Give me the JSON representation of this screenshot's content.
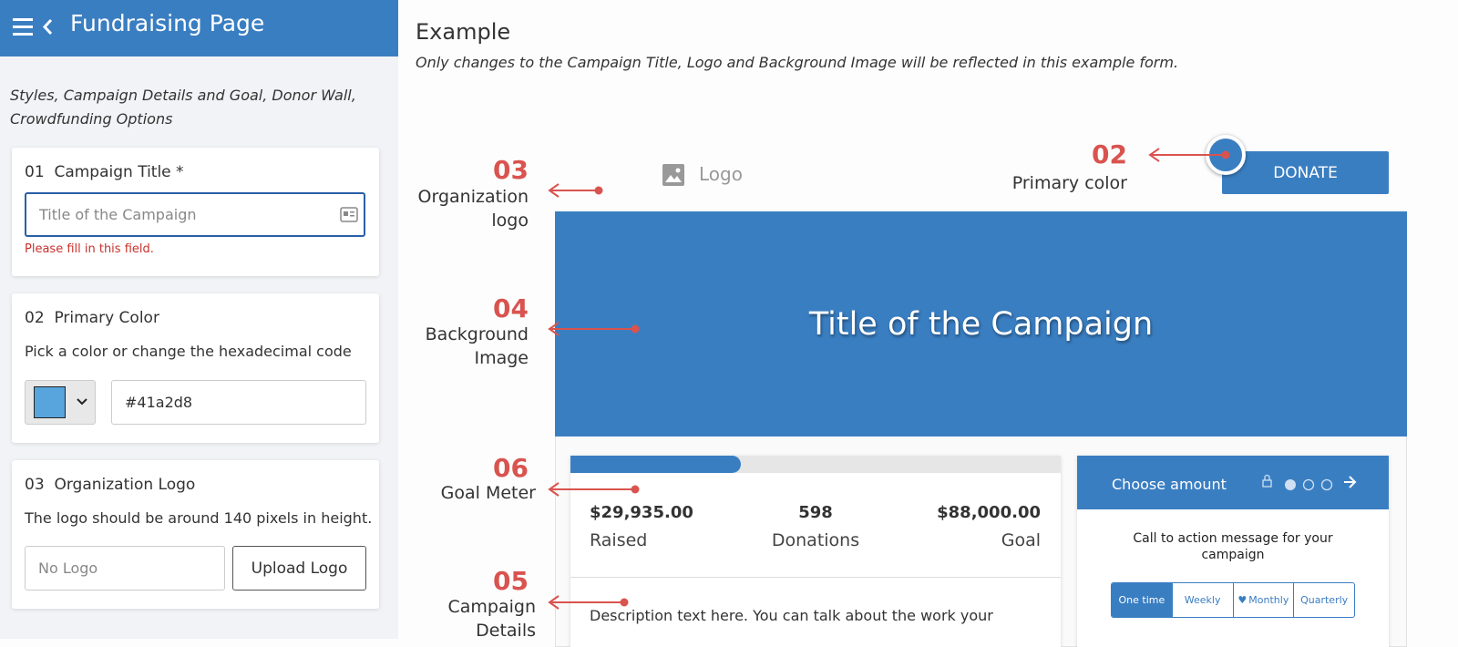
{
  "header": {
    "title": "Fundraising Page"
  },
  "sidebar": {
    "intro": "Styles, Campaign Details and Goal, Donor Wall, Crowdfunding Options",
    "sections": [
      {
        "number": "01",
        "title": "Campaign Title *",
        "placeholder": "Title of the Campaign",
        "error": "Please fill in this field."
      },
      {
        "number": "02",
        "title": "Primary Color",
        "description": "Pick a color or change the hexadecimal code",
        "value": "#41a2d8"
      },
      {
        "number": "03",
        "title": "Organization Logo",
        "description": "The logo should be around 140 pixels in height.",
        "placeholder": "No Logo",
        "button": "Upload Logo"
      }
    ]
  },
  "example": {
    "title": "Example",
    "subtitle": "Only changes to the Campaign Title, Logo and Background Image will be reflected in this example form.",
    "logo": "Logo",
    "donate": "DONATE",
    "banner_title": "Title of the Campaign",
    "stats": [
      {
        "value": "$29,935.00",
        "label": "Raised"
      },
      {
        "value": "598",
        "label": "Donations"
      },
      {
        "value": "$88,000.00",
        "label": "Goal"
      }
    ],
    "description": "Description text here. You can talk about the work your",
    "widget": {
      "title": "Choose amount",
      "cta": "Call to action message for your campaign",
      "frequencies": [
        "One time",
        "Weekly",
        "Monthly",
        "Quarterly"
      ]
    }
  },
  "annotations": [
    {
      "number": "03",
      "label": "Organization logo"
    },
    {
      "number": "02",
      "label": "Primary color"
    },
    {
      "number": "04",
      "label": "Background Image"
    },
    {
      "number": "06",
      "label": "Goal Meter"
    },
    {
      "number": "05",
      "label": "Campaign Details"
    }
  ]
}
